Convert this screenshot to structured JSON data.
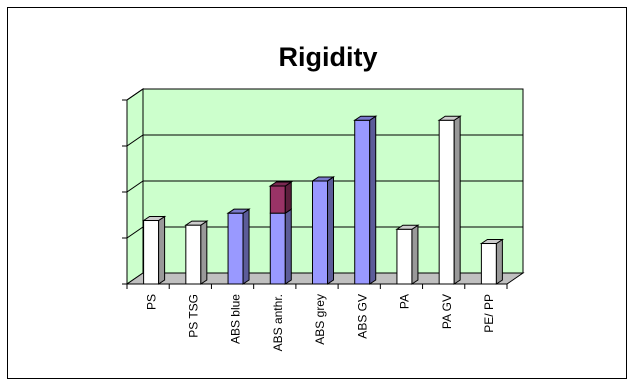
{
  "chart_data": {
    "type": "bar",
    "title": "Rigidity",
    "xlabel": "",
    "ylabel": "",
    "ylim": [
      0,
      4
    ],
    "y_ticks_labeled": false,
    "grid": true,
    "legend": "none",
    "stacked": true,
    "categories": [
      "PS",
      "PS TSG",
      "ABS blue",
      "ABS anthr.",
      "ABS grey",
      "ABS GV",
      "PA",
      "PA GV",
      "PE/ PP"
    ],
    "series": [
      {
        "values": [
          1.38,
          1.28,
          1.54,
          1.54,
          2.24,
          3.56,
          1.19,
          3.56,
          0.88
        ]
      },
      {
        "values": [
          0,
          0,
          0,
          0.59,
          0,
          0,
          0,
          0,
          0
        ]
      }
    ],
    "bar_colors": [
      "#ffffff",
      "#ffffff",
      "#9999ff",
      "#9999ff",
      "#9999ff",
      "#9999ff",
      "#ffffff",
      "#ffffff",
      "#ffffff"
    ],
    "stack_top_color": "#993366",
    "plot_background": "#ccffcc",
    "floor_color": "#c0c0c0"
  }
}
